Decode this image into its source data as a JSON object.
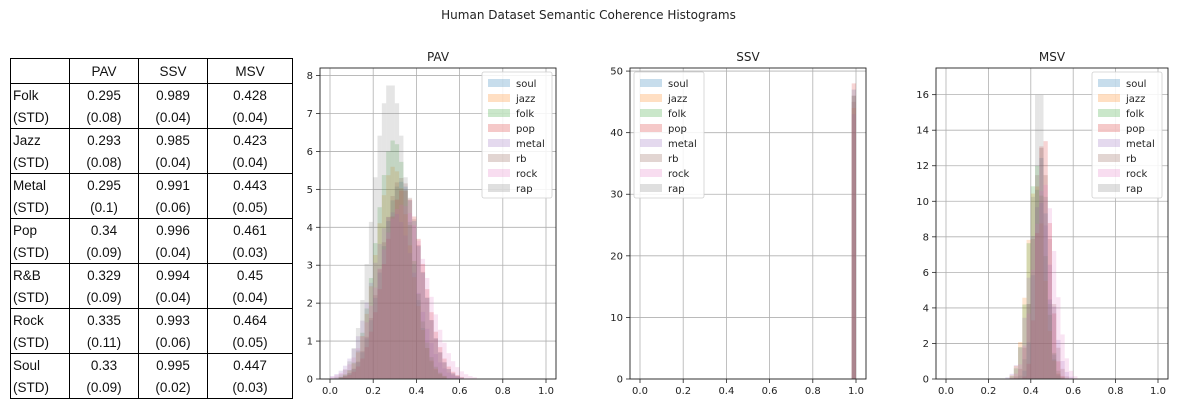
{
  "figure_title": "Human Dataset Semantic Coherence Histograms",
  "table": {
    "headers": [
      "",
      "PAV",
      "SSV",
      "MSV"
    ],
    "rows": [
      {
        "genre": "Folk",
        "pav": "0.295",
        "ssv": "0.989",
        "msv": "0.428",
        "std_label": "(STD)",
        "pav_std": "(0.08)",
        "ssv_std": "(0.04)",
        "msv_std": "(0.04)"
      },
      {
        "genre": "Jazz",
        "pav": "0.293",
        "ssv": "0.985",
        "msv": "0.423",
        "std_label": "(STD)",
        "pav_std": "(0.08)",
        "ssv_std": "(0.04)",
        "msv_std": "(0.04)"
      },
      {
        "genre": "Metal",
        "pav": "0.295",
        "ssv": "0.991",
        "msv": "0.443",
        "std_label": "(STD)",
        "pav_std": "(0.1)",
        "ssv_std": "(0.06)",
        "msv_std": "(0.05)"
      },
      {
        "genre": "Pop",
        "pav": "0.34",
        "ssv": "0.996",
        "msv": "0.461",
        "std_label": "(STD)",
        "pav_std": "(0.09)",
        "ssv_std": "(0.04)",
        "msv_std": "(0.03)"
      },
      {
        "genre": "R&B",
        "pav": "0.329",
        "ssv": "0.994",
        "msv": "0.45",
        "std_label": "(STD)",
        "pav_std": "(0.09)",
        "ssv_std": "(0.04)",
        "msv_std": "(0.04)"
      },
      {
        "genre": "Rock",
        "pav": "0.335",
        "ssv": "0.993",
        "msv": "0.464",
        "std_label": "(STD)",
        "pav_std": "(0.11)",
        "ssv_std": "(0.06)",
        "msv_std": "(0.05)"
      },
      {
        "genre": "Soul",
        "pav": "0.33",
        "ssv": "0.995",
        "msv": "0.447",
        "std_label": "(STD)",
        "pav_std": "(0.09)",
        "ssv_std": "(0.02)",
        "msv_std": "(0.03)"
      }
    ]
  },
  "colors": {
    "soul": "#1f77b4",
    "jazz": "#ff7f0e",
    "folk": "#2ca02c",
    "pop": "#d62728",
    "metal": "#9467bd",
    "rb": "#8c564b",
    "rock": "#e377c2",
    "rap": "#7f7f7f"
  },
  "chart_data": [
    {
      "type": "histogram",
      "title": "PAV",
      "xlim": [
        0,
        1
      ],
      "ylim": [
        0,
        8.2
      ],
      "xticks": [
        "0.0",
        "0.2",
        "0.4",
        "0.6",
        "0.8",
        "1.0"
      ],
      "yticks": [
        "0",
        "1",
        "2",
        "3",
        "4",
        "5",
        "6",
        "7",
        "8"
      ],
      "legend": [
        "soul",
        "jazz",
        "folk",
        "pop",
        "metal",
        "rb",
        "rock",
        "rap"
      ],
      "legend_position": "top-right",
      "grid": true,
      "series": [
        {
          "name": "soul",
          "mean": 0.33,
          "std": 0.09,
          "peak": 5.2
        },
        {
          "name": "jazz",
          "mean": 0.293,
          "std": 0.08,
          "peak": 5.6
        },
        {
          "name": "folk",
          "mean": 0.295,
          "std": 0.08,
          "peak": 6.3
        },
        {
          "name": "pop",
          "mean": 0.34,
          "std": 0.09,
          "peak": 5.0
        },
        {
          "name": "metal",
          "mean": 0.295,
          "std": 0.1,
          "peak": 4.4
        },
        {
          "name": "rb",
          "mean": 0.329,
          "std": 0.09,
          "peak": 5.3
        },
        {
          "name": "rock",
          "mean": 0.335,
          "std": 0.11,
          "peak": 4.6
        },
        {
          "name": "rap",
          "mean": 0.28,
          "std": 0.08,
          "peak": 7.8
        }
      ]
    },
    {
      "type": "histogram",
      "title": "SSV",
      "xlim": [
        0,
        1
      ],
      "ylim": [
        0,
        50.5
      ],
      "xticks": [
        "0.0",
        "0.2",
        "0.4",
        "0.6",
        "0.8",
        "1.0"
      ],
      "yticks": [
        "0",
        "10",
        "20",
        "30",
        "40",
        "50"
      ],
      "legend": [
        "soul",
        "jazz",
        "folk",
        "pop",
        "metal",
        "rb",
        "rock",
        "rap"
      ],
      "legend_position": "top-left",
      "grid": true,
      "series": [
        {
          "name": "soul",
          "mean": 0.995,
          "std": 0.02,
          "peak": 47
        },
        {
          "name": "jazz",
          "mean": 0.985,
          "std": 0.04,
          "peak": 44
        },
        {
          "name": "folk",
          "mean": 0.989,
          "std": 0.04,
          "peak": 45
        },
        {
          "name": "pop",
          "mean": 0.996,
          "std": 0.04,
          "peak": 48
        },
        {
          "name": "metal",
          "mean": 0.991,
          "std": 0.06,
          "peak": 43
        },
        {
          "name": "rb",
          "mean": 0.994,
          "std": 0.04,
          "peak": 46
        },
        {
          "name": "rock",
          "mean": 0.993,
          "std": 0.06,
          "peak": 45
        },
        {
          "name": "rap",
          "mean": 0.994,
          "std": 0.03,
          "peak": 46
        }
      ]
    },
    {
      "type": "histogram",
      "title": "MSV",
      "xlim": [
        0,
        1
      ],
      "ylim": [
        0,
        17.5
      ],
      "xticks": [
        "0.0",
        "0.2",
        "0.4",
        "0.6",
        "0.8",
        "1.0"
      ],
      "yticks": [
        "0",
        "2",
        "4",
        "6",
        "8",
        "10",
        "12",
        "14",
        "16"
      ],
      "legend": [
        "soul",
        "jazz",
        "folk",
        "pop",
        "metal",
        "rb",
        "rock",
        "rap"
      ],
      "legend_position": "top-right",
      "grid": true,
      "series": [
        {
          "name": "soul",
          "mean": 0.447,
          "std": 0.03,
          "peak": 12.5
        },
        {
          "name": "jazz",
          "mean": 0.423,
          "std": 0.04,
          "peak": 11
        },
        {
          "name": "folk",
          "mean": 0.428,
          "std": 0.04,
          "peak": 12
        },
        {
          "name": "pop",
          "mean": 0.461,
          "std": 0.03,
          "peak": 14
        },
        {
          "name": "metal",
          "mean": 0.443,
          "std": 0.05,
          "peak": 10
        },
        {
          "name": "rb",
          "mean": 0.45,
          "std": 0.04,
          "peak": 13
        },
        {
          "name": "rock",
          "mean": 0.464,
          "std": 0.05,
          "peak": 11
        },
        {
          "name": "rap",
          "mean": 0.44,
          "std": 0.03,
          "peak": 16.9
        }
      ]
    }
  ]
}
